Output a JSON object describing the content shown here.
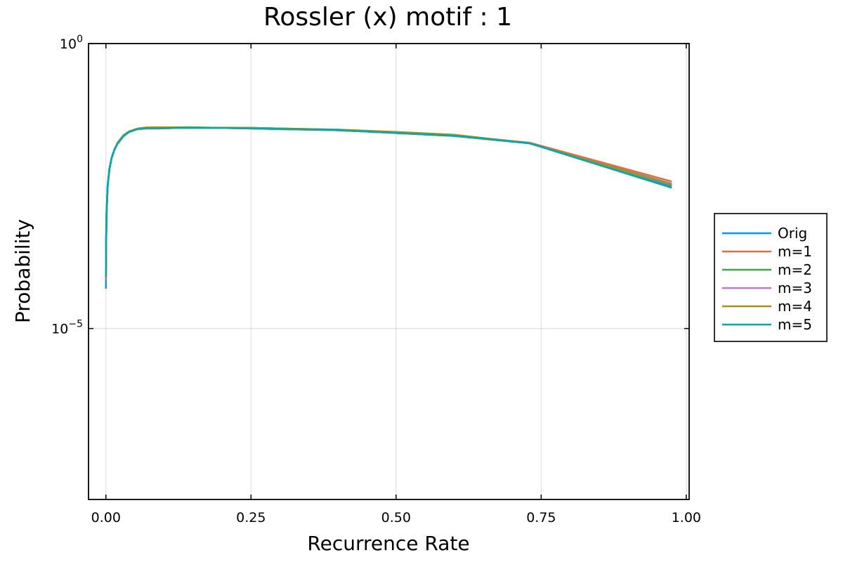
{
  "chart_data": {
    "type": "line",
    "title": "Rossler (x) motif : 1",
    "xlabel": "Recurrence Rate",
    "ylabel": "Probability",
    "xlim": [
      -0.03,
      1.005
    ],
    "ylim_log10": [
      -8,
      0
    ],
    "yscale": "log",
    "grid": true,
    "legend_position": "outer-right",
    "x_ticks": [
      {
        "value": 0.0,
        "label": "0.00"
      },
      {
        "value": 0.25,
        "label": "0.25"
      },
      {
        "value": 0.5,
        "label": "0.50"
      },
      {
        "value": 0.75,
        "label": "0.75"
      },
      {
        "value": 1.0,
        "label": "1.00"
      }
    ],
    "y_ticks": [
      {
        "log10": 0,
        "base": "10",
        "exp": "0"
      },
      {
        "log10": -5,
        "base": "10",
        "exp": "−5"
      }
    ],
    "series": [
      {
        "name": "Orig",
        "color": "#009AFA",
        "x": [
          0.0,
          0.0003,
          0.001,
          0.003,
          0.006,
          0.01,
          0.015,
          0.02,
          0.03,
          0.04,
          0.055,
          0.07,
          0.09,
          0.12,
          0.15,
          0.2,
          0.25,
          0.3,
          0.4,
          0.5,
          0.6,
          0.73,
          0.975
        ],
        "log10_y": [
          -4.3,
          -3.6,
          -3.0,
          -2.5,
          -2.2,
          -2.0,
          -1.85,
          -1.75,
          -1.62,
          -1.55,
          -1.5,
          -1.49,
          -1.49,
          -1.48,
          -1.48,
          -1.48,
          -1.49,
          -1.5,
          -1.52,
          -1.57,
          -1.62,
          -1.75,
          -2.5
        ]
      },
      {
        "name": "m=1",
        "color": "#E36F47",
        "x": [
          0.0,
          0.0003,
          0.001,
          0.003,
          0.006,
          0.01,
          0.015,
          0.02,
          0.03,
          0.04,
          0.055,
          0.07,
          0.09,
          0.12,
          0.15,
          0.2,
          0.25,
          0.3,
          0.4,
          0.5,
          0.6,
          0.73,
          0.975
        ],
        "log10_y": [
          -4.15,
          -3.55,
          -3.0,
          -2.5,
          -2.2,
          -2.0,
          -1.85,
          -1.75,
          -1.62,
          -1.55,
          -1.5,
          -1.48,
          -1.48,
          -1.47,
          -1.47,
          -1.48,
          -1.48,
          -1.49,
          -1.52,
          -1.56,
          -1.61,
          -1.74,
          -2.42
        ]
      },
      {
        "name": "m=2",
        "color": "#3EA44E",
        "x": [
          0.0,
          0.0003,
          0.001,
          0.003,
          0.006,
          0.01,
          0.015,
          0.02,
          0.03,
          0.04,
          0.055,
          0.07,
          0.09,
          0.12,
          0.15,
          0.2,
          0.25,
          0.3,
          0.4,
          0.5,
          0.6,
          0.73,
          0.975
        ],
        "log10_y": [
          -4.05,
          -3.5,
          -3.0,
          -2.5,
          -2.2,
          -2.0,
          -1.85,
          -1.75,
          -1.62,
          -1.55,
          -1.5,
          -1.48,
          -1.48,
          -1.47,
          -1.47,
          -1.48,
          -1.48,
          -1.49,
          -1.51,
          -1.56,
          -1.61,
          -1.75,
          -2.46
        ]
      },
      {
        "name": "m=3",
        "color": "#C371D2",
        "x": [
          0.0,
          0.0003,
          0.001,
          0.003,
          0.006,
          0.01,
          0.015,
          0.02,
          0.03,
          0.04,
          0.055,
          0.07,
          0.09,
          0.12,
          0.15,
          0.2,
          0.25,
          0.3,
          0.4,
          0.5,
          0.6,
          0.73,
          0.975
        ],
        "log10_y": [
          -4.1,
          -3.5,
          -3.0,
          -2.5,
          -2.2,
          -2.0,
          -1.85,
          -1.75,
          -1.62,
          -1.55,
          -1.5,
          -1.49,
          -1.49,
          -1.48,
          -1.48,
          -1.48,
          -1.49,
          -1.5,
          -1.52,
          -1.57,
          -1.62,
          -1.75,
          -2.47
        ]
      },
      {
        "name": "m=4",
        "color": "#AC8E18",
        "x": [
          0.0,
          0.0003,
          0.001,
          0.003,
          0.006,
          0.01,
          0.015,
          0.02,
          0.03,
          0.04,
          0.055,
          0.07,
          0.09,
          0.12,
          0.15,
          0.2,
          0.25,
          0.3,
          0.4,
          0.5,
          0.6,
          0.73,
          0.975
        ],
        "log10_y": [
          -4.0,
          -3.5,
          -3.0,
          -2.5,
          -2.2,
          -2.0,
          -1.85,
          -1.74,
          -1.61,
          -1.54,
          -1.49,
          -1.47,
          -1.47,
          -1.47,
          -1.48,
          -1.48,
          -1.48,
          -1.49,
          -1.51,
          -1.55,
          -1.6,
          -1.75,
          -2.48
        ]
      },
      {
        "name": "m=5",
        "color": "#00A9AD",
        "x": [
          0.0,
          0.0003,
          0.001,
          0.003,
          0.006,
          0.01,
          0.015,
          0.02,
          0.03,
          0.04,
          0.055,
          0.07,
          0.09,
          0.12,
          0.15,
          0.2,
          0.25,
          0.3,
          0.4,
          0.5,
          0.6,
          0.73,
          0.975
        ],
        "log10_y": [
          -4.1,
          -3.52,
          -3.0,
          -2.5,
          -2.2,
          -2.0,
          -1.86,
          -1.76,
          -1.63,
          -1.55,
          -1.5,
          -1.49,
          -1.49,
          -1.48,
          -1.48,
          -1.48,
          -1.49,
          -1.5,
          -1.52,
          -1.57,
          -1.62,
          -1.75,
          -2.53
        ]
      }
    ]
  }
}
